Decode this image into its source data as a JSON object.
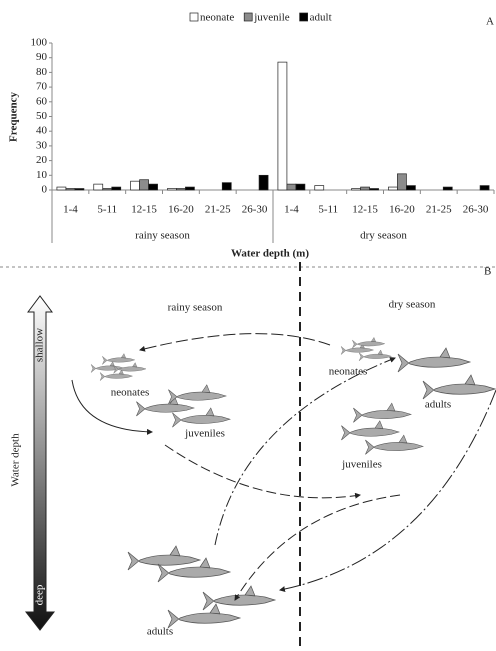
{
  "chart_data": {
    "type": "bar",
    "panel_label": "A",
    "categories": [
      "1-4",
      "5-11",
      "12-15",
      "16-20",
      "21-25",
      "26-30",
      "1-4",
      "5-11",
      "12-15",
      "16-20",
      "21-25",
      "26-30"
    ],
    "groups": [
      "rainy season",
      "dry season"
    ],
    "series": [
      {
        "name": "neonate",
        "color": "#ffffff",
        "values": [
          2,
          4,
          6,
          1,
          0,
          0,
          87,
          3,
          1,
          2,
          0,
          0
        ]
      },
      {
        "name": "juvenile",
        "color": "#8c8c8c",
        "values": [
          1,
          1,
          7,
          1,
          0,
          0,
          4,
          0,
          2,
          11,
          0,
          0
        ]
      },
      {
        "name": "adult",
        "color": "#000000",
        "values": [
          1,
          2,
          4,
          2,
          5,
          10,
          4,
          0,
          1,
          3,
          2,
          3
        ]
      }
    ],
    "ylabel": "Frequency",
    "xlabel": "Water depth (m)",
    "ylim": [
      0,
      100
    ],
    "yticks": [
      0,
      10,
      20,
      30,
      40,
      50,
      60,
      70,
      80,
      90,
      100
    ],
    "legend": "top"
  },
  "diagram": {
    "panel_label": "B",
    "columns": [
      "rainy season",
      "dry season"
    ],
    "axis": {
      "label": "Water depth",
      "top": "shallow",
      "bottom": "deep"
    },
    "nodes": [
      {
        "label": "neonates"
      },
      {
        "label": "juveniles"
      },
      {
        "label": "adults"
      },
      {
        "label": "neonates"
      },
      {
        "label": "adults"
      },
      {
        "label": "juveniles"
      }
    ]
  }
}
